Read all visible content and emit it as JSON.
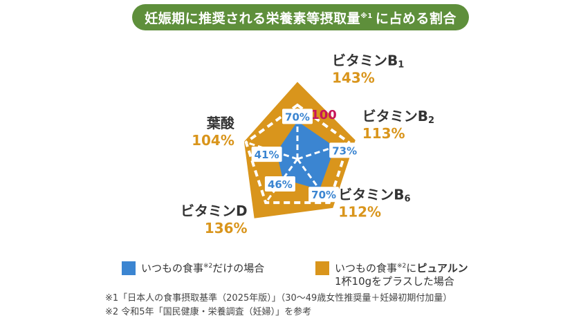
{
  "title": {
    "main": "妊娠期に推奨される栄養素等摂取量",
    "ref": "※1",
    "tail": "に占める割合"
  },
  "chart_data": {
    "type": "radar",
    "center_label": "100",
    "axes": [
      {
        "name": "ビタミンB",
        "sub": "1"
      },
      {
        "name": "ビタミンB",
        "sub": "2"
      },
      {
        "name": "ビタミンB",
        "sub": "6"
      },
      {
        "name": "ビタミンD",
        "sub": ""
      },
      {
        "name": "葉酸",
        "sub": ""
      }
    ],
    "series": [
      {
        "values": [
          70,
          73,
          70,
          46,
          41
        ],
        "labels": [
          "70%",
          "73%",
          "70%",
          "46%",
          "41%"
        ],
        "color": "#3b85d1"
      },
      {
        "values": [
          143,
          113,
          112,
          136,
          104
        ],
        "labels": [
          "143%",
          "113%",
          "112%",
          "136%",
          "104%"
        ],
        "color": "#d9951c"
      }
    ],
    "reference_value": 100,
    "reference_color": "#ffffff",
    "accent_color": "#c7155a",
    "value_label_color": "#d9951c"
  },
  "legend": {
    "item1": {
      "text": "いつもの食事",
      "ref": "※2",
      "tail": "だけの場合"
    },
    "item2": {
      "text": "いつもの食事",
      "ref": "※2",
      "mid": "に",
      "bold": "ピュアルン",
      "line2": "1杯10gをプラスした場合"
    }
  },
  "notes": [
    "※1「日本人の食事摂取基準（2025年版）」（30～49歳女性推奨量＋妊婦初期付加量）",
    "※2 令和5年「国民健康・栄養調査（妊婦）」を参考"
  ]
}
